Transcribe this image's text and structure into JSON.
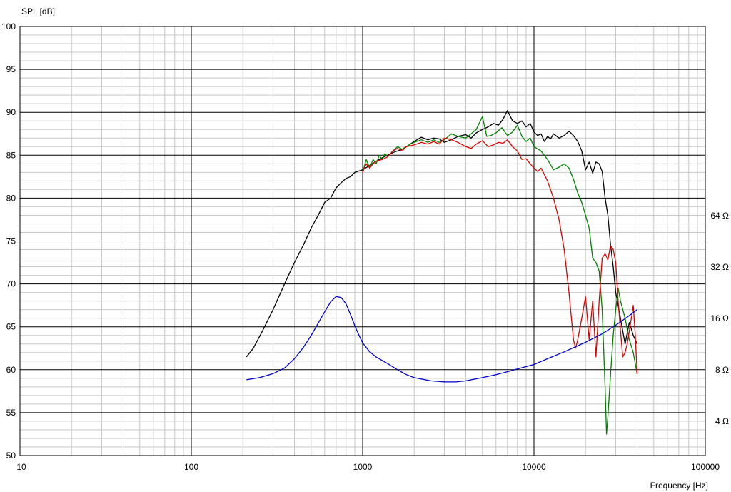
{
  "chart_data": {
    "type": "line",
    "title": "",
    "ylabel": "SPL [dB]",
    "xlabel": "Frequency [Hz]",
    "x_scale": "log",
    "xlim": [
      10,
      100000
    ],
    "ylim": [
      50,
      100
    ],
    "grid": true,
    "x_ticks": [
      {
        "value": 10,
        "label": "10"
      },
      {
        "value": 100,
        "label": "100"
      },
      {
        "value": 1000,
        "label": "1000"
      },
      {
        "value": 10000,
        "label": "10000"
      },
      {
        "value": 100000,
        "label": "100000"
      }
    ],
    "y_ticks": [
      {
        "value": 50,
        "label": "50"
      },
      {
        "value": 55,
        "label": "55"
      },
      {
        "value": 60,
        "label": "60"
      },
      {
        "value": 65,
        "label": "65"
      },
      {
        "value": 70,
        "label": "70"
      },
      {
        "value": 75,
        "label": "75"
      },
      {
        "value": 80,
        "label": "80"
      },
      {
        "value": 85,
        "label": "85"
      },
      {
        "value": 90,
        "label": "90"
      },
      {
        "value": 95,
        "label": "95"
      },
      {
        "value": 100,
        "label": "100"
      }
    ],
    "impedance_axis": {
      "scale": "log2",
      "ticks": [
        {
          "ohm": 4,
          "label": "4 Ω"
        },
        {
          "ohm": 8,
          "label": "8 Ω"
        },
        {
          "ohm": 16,
          "label": "16 Ω"
        },
        {
          "ohm": 32,
          "label": "32 Ω"
        },
        {
          "ohm": 64,
          "label": "64 Ω"
        }
      ]
    },
    "series": [
      {
        "color": "#000000",
        "axis": "spl",
        "x": [
          210,
          230,
          260,
          300,
          350,
          400,
          450,
          500,
          550,
          600,
          650,
          700,
          750,
          800,
          850,
          900,
          1000,
          1100,
          1200,
          1300,
          1400,
          1500,
          1600,
          1700,
          1800,
          2000,
          2200,
          2400,
          2600,
          2800,
          3000,
          3300,
          3600,
          4000,
          4300,
          4600,
          5000,
          5400,
          5800,
          6200,
          6600,
          7000,
          7500,
          8000,
          8500,
          9000,
          9500,
          10000,
          10500,
          11000,
          11500,
          12000,
          12500,
          13000,
          14000,
          15000,
          16000,
          17000,
          18000,
          19000,
          20000,
          21000,
          22000,
          23000,
          24000,
          25000,
          26000,
          27000,
          28000,
          29000,
          30000,
          32000,
          34000,
          36000,
          38000,
          40000
        ],
        "y": [
          61.5,
          62.5,
          64.5,
          67.0,
          70.0,
          72.5,
          74.5,
          76.5,
          78.0,
          79.5,
          80.0,
          81.2,
          81.8,
          82.3,
          82.5,
          83.0,
          83.3,
          83.8,
          84.3,
          84.7,
          85.0,
          85.3,
          85.5,
          85.7,
          86.0,
          86.6,
          87.1,
          86.8,
          87.0,
          86.9,
          86.5,
          86.8,
          87.2,
          87.4,
          87.0,
          87.6,
          88.0,
          88.3,
          88.7,
          88.5,
          89.2,
          90.2,
          89.0,
          88.7,
          89.0,
          88.3,
          88.7,
          87.7,
          87.3,
          87.5,
          86.6,
          87.2,
          86.9,
          87.5,
          87.0,
          87.3,
          87.8,
          87.3,
          86.6,
          85.5,
          83.3,
          84.2,
          82.9,
          84.2,
          84.0,
          83.1,
          80.0,
          78.0,
          74.5,
          72.0,
          69.0,
          66.0,
          63.0,
          65.5,
          64.0,
          63.0
        ]
      },
      {
        "color": "#008000",
        "axis": "spl",
        "x": [
          1000,
          1050,
          1100,
          1150,
          1200,
          1250,
          1300,
          1350,
          1400,
          1500,
          1600,
          1700,
          1800,
          1900,
          2000,
          2200,
          2400,
          2600,
          2800,
          3000,
          3300,
          3600,
          4000,
          4300,
          4600,
          5000,
          5300,
          5600,
          6000,
          6500,
          7000,
          7500,
          8000,
          8500,
          9000,
          9500,
          10000,
          11000,
          12000,
          13000,
          14000,
          15000,
          16000,
          17000,
          18000,
          19000,
          20000,
          21000,
          22000,
          23000,
          24000,
          25000,
          26000,
          26500,
          27000,
          28000,
          29000,
          30000,
          31000,
          32000,
          34000,
          36000,
          38000,
          40000
        ],
        "y": [
          83.0,
          84.5,
          83.5,
          84.5,
          84.0,
          85.0,
          84.5,
          85.2,
          84.8,
          85.5,
          86.0,
          85.7,
          86.0,
          86.3,
          86.5,
          86.8,
          86.5,
          86.8,
          86.5,
          86.8,
          87.5,
          87.2,
          87.0,
          87.5,
          88.0,
          89.5,
          87.2,
          87.3,
          87.6,
          88.2,
          87.3,
          87.7,
          88.5,
          87.2,
          86.6,
          87.0,
          86.0,
          85.5,
          84.5,
          83.3,
          83.6,
          84.0,
          83.5,
          82.2,
          80.6,
          79.5,
          78.0,
          76.5,
          73.0,
          72.5,
          71.5,
          67.0,
          58.0,
          52.5,
          54.5,
          59.5,
          64.0,
          67.0,
          69.5,
          68.0,
          66.0,
          63.5,
          62.0,
          59.5
        ]
      },
      {
        "color": "#e00000",
        "axis": "spl",
        "x": [
          1000,
          1050,
          1100,
          1150,
          1200,
          1300,
          1400,
          1500,
          1600,
          1700,
          1800,
          2000,
          2200,
          2400,
          2600,
          2800,
          3000,
          3300,
          3600,
          4000,
          4300,
          4600,
          5000,
          5400,
          5800,
          6200,
          6600,
          7000,
          7500,
          8000,
          8500,
          9000,
          9500,
          10000,
          10500,
          11000,
          12000,
          13000,
          14000,
          15000,
          16000,
          17000,
          17500,
          18000,
          19000,
          20000,
          21000,
          22000,
          23000,
          24000,
          25000,
          26000,
          27000,
          28000,
          29000,
          30000,
          31000,
          32000,
          33000,
          34000,
          35000,
          36000,
          37000,
          38000,
          39000,
          40000
        ],
        "y": [
          83.0,
          84.0,
          83.5,
          84.0,
          84.3,
          84.5,
          84.8,
          85.5,
          85.8,
          85.5,
          86.0,
          86.2,
          86.5,
          86.3,
          86.6,
          86.3,
          87.0,
          86.8,
          86.5,
          86.0,
          85.8,
          86.3,
          86.7,
          86.0,
          86.2,
          86.5,
          86.4,
          86.8,
          86.0,
          85.5,
          84.5,
          84.6,
          84.0,
          83.5,
          83.1,
          83.5,
          82.0,
          80.0,
          77.5,
          74.0,
          69.0,
          63.5,
          62.5,
          63.5,
          66.0,
          68.5,
          63.5,
          68.0,
          61.5,
          68.0,
          73.0,
          73.5,
          72.8,
          74.5,
          74.0,
          72.5,
          68.0,
          64.5,
          61.5,
          62.0,
          63.0,
          64.5,
          66.0,
          67.5,
          64.0,
          59.5
        ]
      },
      {
        "color": "#0000c8",
        "axis": "impedance",
        "x": [
          210,
          250,
          300,
          350,
          400,
          450,
          500,
          550,
          600,
          650,
          700,
          750,
          800,
          850,
          900,
          950,
          1000,
          1100,
          1200,
          1400,
          1600,
          1800,
          2000,
          2500,
          3000,
          3500,
          4000,
          5000,
          6000,
          7000,
          8000,
          10000,
          12000,
          15000,
          20000,
          25000,
          30000,
          35000,
          40000
        ],
        "y": [
          7.0,
          7.2,
          7.6,
          8.2,
          9.3,
          10.8,
          12.7,
          15.0,
          17.5,
          20.0,
          21.5,
          21.2,
          19.5,
          16.8,
          14.5,
          12.8,
          11.5,
          10.2,
          9.5,
          8.7,
          8.0,
          7.5,
          7.2,
          6.9,
          6.8,
          6.8,
          6.9,
          7.2,
          7.5,
          7.8,
          8.1,
          8.6,
          9.3,
          10.2,
          11.6,
          13.0,
          14.6,
          16.3,
          18.0
        ]
      }
    ]
  }
}
